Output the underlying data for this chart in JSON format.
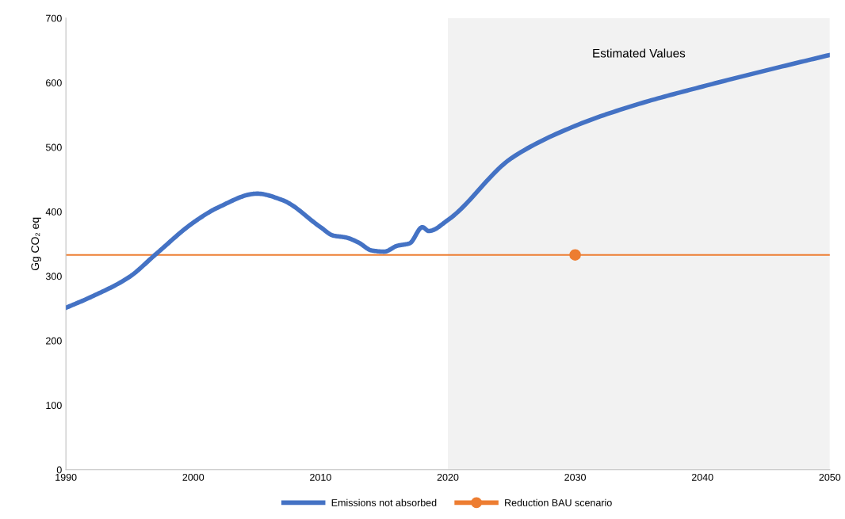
{
  "chart_data": {
    "type": "line",
    "ylabel": "Gg CO₂ eq",
    "xlim": [
      1990,
      2050
    ],
    "xticks": [
      1990,
      2000,
      2010,
      2020,
      2030,
      2040,
      2050
    ],
    "ylim": [
      0,
      700
    ],
    "yticks": [
      0,
      100,
      200,
      300,
      400,
      500,
      600,
      700
    ],
    "grid": false,
    "legend": "bottom",
    "marker": "none",
    "line_style": "solid",
    "series": [
      {
        "name": "Emissions not absorbed",
        "color": "#4472c4",
        "x": [
          1990,
          1992,
          1995,
          1997,
          2000,
          2002,
          2005,
          2007,
          2010,
          2011,
          2012,
          2013,
          2014,
          2015,
          2016,
          2017,
          2018,
          2018.5,
          2020,
          2025,
          2030,
          2035,
          2040,
          2045,
          2050
        ],
        "values": [
          251,
          268,
          299,
          333,
          383,
          407,
          428,
          418,
          376,
          363,
          360,
          352,
          340,
          338,
          347,
          351,
          376,
          370,
          387,
          483,
          533,
          567,
          594,
          619,
          643
        ]
      },
      {
        "name": "Reduction BAU scenario",
        "type": "scatter",
        "color": "#ed7d31",
        "marker": "circle",
        "x": [
          2030
        ],
        "values": [
          333
        ]
      }
    ],
    "ref_lines": [
      {
        "axis": "y",
        "value": 333,
        "color": "#ed7d31"
      }
    ],
    "bands": [
      {
        "axis": "x",
        "from": 2020,
        "to": 2050,
        "label": "Estimated Values",
        "color": "#f2f2f2"
      }
    ]
  }
}
